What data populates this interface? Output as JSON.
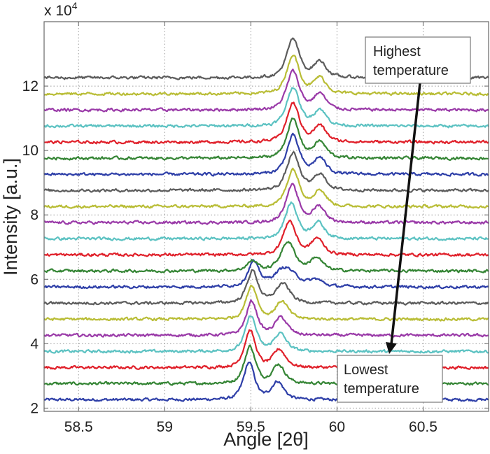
{
  "chart_data": {
    "type": "line",
    "title": "",
    "xlabel": "Angle [2θ]",
    "ylabel": "Intensity [a.u.]",
    "y_multiplier_label": {
      "base": "x 10",
      "exponent": "4"
    },
    "xlim": [
      58.3,
      60.88
    ],
    "ylim": [
      1.9,
      14
    ],
    "xticks": [
      "58.5",
      "59",
      "59.5",
      "60",
      "60.5"
    ],
    "yticks": [
      "2",
      "4",
      "6",
      "8",
      "10",
      "12"
    ],
    "grid": "dotted",
    "colors_cycle": [
      "#2e3fa8",
      "#358535",
      "#e0202a",
      "#5cc2c2",
      "#9a3aa8",
      "#b9bd36",
      "#5c5c5c"
    ],
    "series_note": "Stacked XRD profiles, ordered from bottom (lowest temperature) to top (highest temperature); baseline and peaks [center, height, half-width] in data units",
    "series": [
      {
        "baseline": 2.26,
        "peaks": [
          [
            59.49,
            1.15,
            0.035
          ],
          [
            59.655,
            0.55,
            0.04
          ]
        ]
      },
      {
        "baseline": 2.76,
        "peaks": [
          [
            59.495,
            1.15,
            0.035
          ],
          [
            59.66,
            0.58,
            0.04
          ]
        ]
      },
      {
        "baseline": 3.26,
        "peaks": [
          [
            59.495,
            1.15,
            0.035
          ],
          [
            59.665,
            0.55,
            0.04
          ]
        ]
      },
      {
        "baseline": 3.76,
        "peaks": [
          [
            59.5,
            1.1,
            0.035
          ],
          [
            59.67,
            0.55,
            0.04
          ]
        ]
      },
      {
        "baseline": 4.26,
        "peaks": [
          [
            59.505,
            1.05,
            0.035
          ],
          [
            59.675,
            0.55,
            0.04
          ]
        ]
      },
      {
        "baseline": 4.76,
        "peaks": [
          [
            59.505,
            1.05,
            0.035
          ],
          [
            59.68,
            0.55,
            0.04
          ]
        ]
      },
      {
        "baseline": 5.26,
        "peaks": [
          [
            59.51,
            1.0,
            0.035
          ],
          [
            59.685,
            0.6,
            0.045
          ]
        ]
      },
      {
        "baseline": 5.76,
        "peaks": [
          [
            59.515,
            0.75,
            0.035
          ],
          [
            59.7,
            0.6,
            0.07
          ],
          [
            59.88,
            0.2,
            0.04
          ]
        ]
      },
      {
        "baseline": 6.26,
        "peaks": [
          [
            59.51,
            0.3,
            0.035
          ],
          [
            59.715,
            0.9,
            0.045
          ],
          [
            59.88,
            0.4,
            0.04
          ]
        ]
      },
      {
        "baseline": 6.76,
        "peaks": [
          [
            59.725,
            1.05,
            0.04
          ],
          [
            59.885,
            0.5,
            0.04
          ]
        ]
      },
      {
        "baseline": 7.26,
        "peaks": [
          [
            59.735,
            1.1,
            0.04
          ],
          [
            59.89,
            0.5,
            0.04
          ]
        ]
      },
      {
        "baseline": 7.76,
        "peaks": [
          [
            59.74,
            1.15,
            0.04
          ],
          [
            59.895,
            0.5,
            0.04
          ]
        ]
      },
      {
        "baseline": 8.26,
        "peaks": [
          [
            59.745,
            1.15,
            0.04
          ],
          [
            59.9,
            0.5,
            0.04
          ]
        ]
      },
      {
        "baseline": 8.76,
        "peaks": [
          [
            59.745,
            1.15,
            0.04
          ],
          [
            59.9,
            0.5,
            0.04
          ]
        ]
      },
      {
        "baseline": 9.26,
        "peaks": [
          [
            59.745,
            1.2,
            0.04
          ],
          [
            59.9,
            0.5,
            0.04
          ]
        ]
      },
      {
        "baseline": 9.76,
        "peaks": [
          [
            59.745,
            1.2,
            0.04
          ],
          [
            59.9,
            0.5,
            0.04
          ]
        ]
      },
      {
        "baseline": 10.26,
        "peaks": [
          [
            59.745,
            1.2,
            0.04
          ],
          [
            59.9,
            0.5,
            0.04
          ]
        ]
      },
      {
        "baseline": 10.76,
        "peaks": [
          [
            59.745,
            1.2,
            0.04
          ],
          [
            59.9,
            0.5,
            0.04
          ]
        ]
      },
      {
        "baseline": 11.26,
        "peaks": [
          [
            59.745,
            1.2,
            0.04
          ],
          [
            59.9,
            0.5,
            0.04
          ]
        ]
      },
      {
        "baseline": 11.76,
        "peaks": [
          [
            59.745,
            1.2,
            0.04
          ],
          [
            59.9,
            0.5,
            0.04
          ]
        ]
      },
      {
        "baseline": 12.26,
        "peaks": [
          [
            59.745,
            1.2,
            0.04
          ],
          [
            59.9,
            0.5,
            0.04
          ]
        ]
      }
    ],
    "annotations": {
      "highest": [
        "Highest",
        "temperature"
      ],
      "lowest": [
        "Lowest",
        "temperature"
      ],
      "arrow": "from highest temperature to lowest temperature"
    }
  }
}
